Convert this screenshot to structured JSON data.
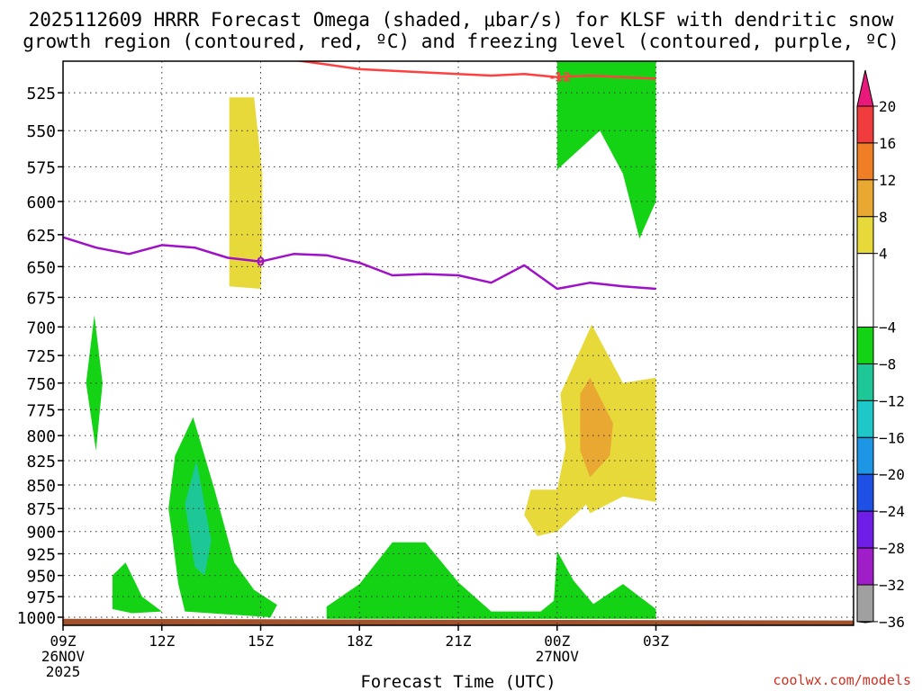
{
  "chart_data": {
    "type": "contour",
    "title_line1": "2025112609 HRRR Forecast Omega (shaded, μbar/s) for KLSF with dendritic snow",
    "title_line2": "growth region (contoured, red, ºC) and freezing level (contoured, purple, ºC)",
    "xlabel": "Forecast Time (UTC)",
    "xlim": [
      9,
      33
    ],
    "x_ticks": [
      {
        "x": 9,
        "lines": [
          "09Z",
          "26NOV",
          "2025"
        ]
      },
      {
        "x": 12,
        "lines": [
          "12Z"
        ]
      },
      {
        "x": 15,
        "lines": [
          "15Z"
        ]
      },
      {
        "x": 18,
        "lines": [
          "18Z"
        ]
      },
      {
        "x": 21,
        "lines": [
          "21Z"
        ]
      },
      {
        "x": 24,
        "lines": [
          "00Z",
          "27NOV"
        ]
      },
      {
        "x": 27,
        "lines": [
          "03Z"
        ]
      }
    ],
    "y_axis": "pressure_hPa_log",
    "ylim": [
      1010,
      505
    ],
    "y_ticks": [
      525,
      550,
      575,
      600,
      625,
      650,
      675,
      700,
      725,
      750,
      775,
      800,
      825,
      850,
      875,
      900,
      925,
      950,
      975,
      1000
    ],
    "colorbar": {
      "labels": [
        "20",
        "16",
        "12",
        "8",
        "4",
        "−4",
        "−8",
        "−12",
        "−16",
        "−20",
        "−24",
        "−28",
        "−32",
        "−36"
      ],
      "label_values": [
        20,
        16,
        12,
        8,
        4,
        -4,
        -8,
        -12,
        -16,
        -20,
        -24,
        -28,
        -32,
        -36
      ],
      "bins": [
        {
          "lo": 20,
          "hi": 24,
          "color": "#e8197a"
        },
        {
          "lo": 16,
          "hi": 20,
          "color": "#f03c3c"
        },
        {
          "lo": 12,
          "hi": 16,
          "color": "#f07e24"
        },
        {
          "lo": 8,
          "hi": 12,
          "color": "#e8a832"
        },
        {
          "lo": 4,
          "hi": 8,
          "color": "#e8d93a"
        },
        {
          "lo": -4,
          "hi": 4,
          "color": "#ffffff"
        },
        {
          "lo": -8,
          "hi": -4,
          "color": "#14d214"
        },
        {
          "lo": -12,
          "hi": -8,
          "color": "#1ec896"
        },
        {
          "lo": -16,
          "hi": -12,
          "color": "#1ec8c8"
        },
        {
          "lo": -20,
          "hi": -16,
          "color": "#1e96e6"
        },
        {
          "lo": -24,
          "hi": -20,
          "color": "#1e50e6"
        },
        {
          "lo": -28,
          "hi": -24,
          "color": "#6e1ee6"
        },
        {
          "lo": -32,
          "hi": -28,
          "color": "#a01ec8"
        },
        {
          "lo": -36,
          "hi": -32,
          "color": "#a0a0a0"
        },
        {
          "lo": -40,
          "hi": -36,
          "color": "#000000"
        }
      ]
    },
    "omega_regions": [
      {
        "name": "omega-region-yellow-15z",
        "value": 6,
        "color": "#e8d93a",
        "points": [
          [
            14.05,
            528
          ],
          [
            14.5,
            528
          ],
          [
            14.8,
            528
          ],
          [
            15.05,
            580
          ],
          [
            15.05,
            640
          ],
          [
            15.0,
            668
          ],
          [
            14.05,
            666
          ]
        ]
      },
      {
        "name": "omega-region-green-10z",
        "value": -6,
        "color": "#14d214",
        "points": [
          [
            9.95,
            690
          ],
          [
            10.2,
            750
          ],
          [
            10.0,
            815
          ],
          [
            9.7,
            750
          ]
        ]
      },
      {
        "name": "omega-region-green-13z",
        "value": -6,
        "color": "#14d214",
        "points": [
          [
            12.95,
            782
          ],
          [
            13.6,
            855
          ],
          [
            14.2,
            935
          ],
          [
            14.8,
            967
          ],
          [
            15.5,
            985
          ],
          [
            15.3,
            1000
          ],
          [
            12.7,
            993
          ],
          [
            12.5,
            960
          ],
          [
            12.3,
            900
          ],
          [
            12.2,
            875
          ],
          [
            12.4,
            820
          ]
        ]
      },
      {
        "name": "omega-region-teal-13z",
        "value": -10,
        "color": "#1ec896",
        "points": [
          [
            13.05,
            825
          ],
          [
            13.5,
            910
          ],
          [
            13.3,
            950
          ],
          [
            13.0,
            940
          ],
          [
            12.7,
            870
          ]
        ]
      },
      {
        "name": "omega-region-green-11z",
        "value": -6,
        "color": "#14d214",
        "points": [
          [
            10.9,
            935
          ],
          [
            11.4,
            975
          ],
          [
            12.0,
            993
          ],
          [
            11.1,
            995
          ],
          [
            10.5,
            990
          ],
          [
            10.5,
            950
          ]
        ]
      },
      {
        "name": "omega-region-green-19z",
        "value": -6,
        "color": "#14d214",
        "points": [
          [
            17.0,
            987
          ],
          [
            18.0,
            960
          ],
          [
            19.0,
            912
          ],
          [
            20.0,
            912
          ],
          [
            21.0,
            958
          ],
          [
            22.0,
            993
          ],
          [
            23.5,
            993
          ],
          [
            23.9,
            980
          ],
          [
            24.0,
            922
          ],
          [
            24.5,
            956
          ],
          [
            25.1,
            984
          ],
          [
            26.0,
            960
          ],
          [
            27.0,
            990
          ],
          [
            27.0,
            1002
          ],
          [
            17.0,
            1002
          ]
        ]
      },
      {
        "name": "omega-region-yellow-22z",
        "value": 6,
        "color": "#e8d93a",
        "points": [
          [
            24.9,
            762
          ],
          [
            25.35,
            790
          ],
          [
            25.0,
            825
          ],
          [
            24.9,
            870
          ],
          [
            24.0,
            900
          ],
          [
            23.4,
            905
          ],
          [
            23.0,
            882
          ],
          [
            23.2,
            855
          ],
          [
            24.0,
            855
          ],
          [
            24.4,
            790
          ]
        ]
      },
      {
        "name": "omega-region-yellow-01z",
        "value": 6,
        "color": "#e8d93a",
        "points": [
          [
            25.05,
            698
          ],
          [
            26.0,
            750
          ],
          [
            27.0,
            745
          ],
          [
            27.0,
            868
          ],
          [
            26.0,
            862
          ],
          [
            25.0,
            880
          ],
          [
            24.3,
            825
          ],
          [
            24.1,
            760
          ]
        ]
      },
      {
        "name": "omega-region-orange-01z",
        "value": 10,
        "color": "#e8a832",
        "points": [
          [
            25.0,
            745
          ],
          [
            25.7,
            788
          ],
          [
            25.6,
            820
          ],
          [
            25.0,
            842
          ],
          [
            24.7,
            815
          ],
          [
            24.7,
            760
          ]
        ]
      },
      {
        "name": "omega-region-green-upper",
        "value": -6,
        "color": "#14d214",
        "points": [
          [
            24.0,
            505
          ],
          [
            27.0,
            505
          ],
          [
            27.0,
            600
          ],
          [
            26.5,
            628
          ],
          [
            26.0,
            580
          ],
          [
            25.3,
            550
          ],
          [
            24.0,
            577
          ]
        ]
      }
    ],
    "ground": {
      "color": "#a0522d",
      "top_left": 1002,
      "top_right": 1004
    },
    "dgz_contour": {
      "color": "#ff4040",
      "label": "-12",
      "label_x": 24.1,
      "points": [
        [
          15.9,
          504
        ],
        [
          17.0,
          507
        ],
        [
          18.0,
          510
        ],
        [
          20.0,
          512
        ],
        [
          22.0,
          514
        ],
        [
          23.0,
          513
        ],
        [
          24.0,
          515
        ],
        [
          25.0,
          514
        ],
        [
          26.0,
          515
        ],
        [
          27.0,
          516
        ]
      ]
    },
    "freezing_contour": {
      "color": "#a010c8",
      "label": "0",
      "label_x": 15.0,
      "points": [
        [
          9,
          627
        ],
        [
          10,
          635
        ],
        [
          11,
          640
        ],
        [
          12,
          633
        ],
        [
          13,
          635
        ],
        [
          14,
          643
        ],
        [
          15,
          646
        ],
        [
          16,
          640
        ],
        [
          17,
          641
        ],
        [
          18,
          647
        ],
        [
          19,
          657
        ],
        [
          20,
          656
        ],
        [
          21,
          657
        ],
        [
          22,
          663
        ],
        [
          23,
          649
        ],
        [
          24,
          668
        ],
        [
          25,
          663
        ],
        [
          26,
          666
        ],
        [
          27,
          668
        ]
      ]
    }
  },
  "watermark": "coolwx.com/models"
}
